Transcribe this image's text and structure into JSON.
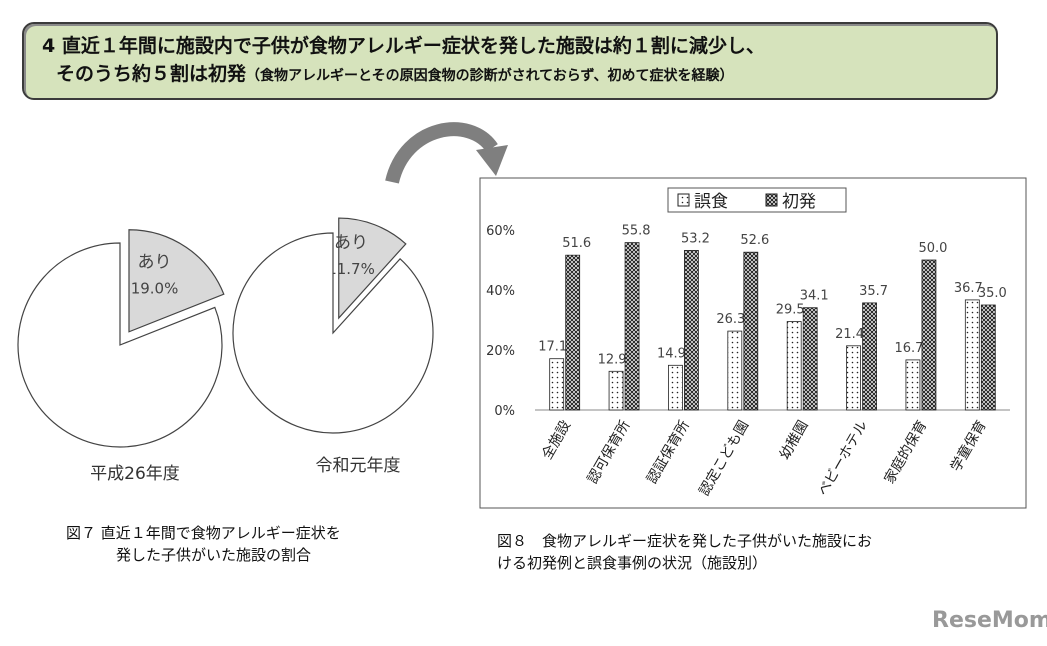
{
  "header": {
    "line1": "4 直近１年間に施設内で子供が食物アレルギー症状を発した施設は約１割に減少し、",
    "line2": "そのうち約５割は初発",
    "line2_note": "（食物アレルギーとその原因食物の診断がされておらず、初めて症状を経験）"
  },
  "captions": {
    "figure7": [
      "図７ 直近１年間で食物アレルギー症状を",
      "発した子供がいた施設の割合"
    ],
    "figure8": [
      "図８　食物アレルギー症状を発した子供がいた施設にお",
      "ける初発例と誤食事例の状況（施設別）"
    ]
  },
  "watermark": "ReseMom",
  "chart_data": [
    {
      "type": "pie",
      "title": "平成26年度",
      "categories": [
        "あり",
        null
      ],
      "values": [
        19.0,
        81.0
      ],
      "value_labels": [
        "19.0%",
        null
      ],
      "colors": [
        "#d9d9d9",
        "#ffffff"
      ]
    },
    {
      "type": "pie",
      "title": "令和元年度",
      "categories": [
        "あり",
        null
      ],
      "values": [
        11.7,
        88.3
      ],
      "value_labels": [
        "11.7%",
        null
      ],
      "colors": [
        "#d9d9d9",
        "#ffffff"
      ]
    },
    {
      "type": "bar",
      "categories": [
        "全施設",
        "認可保育所",
        "認証保育所",
        "認定こども園",
        "幼稚園",
        "ベビーホテル",
        "家庭的保育",
        "学童保育"
      ],
      "series": [
        {
          "name": "誤食",
          "color": "#ffffff",
          "pattern": "dots",
          "values": [
            17.1,
            12.9,
            14.9,
            26.3,
            29.5,
            21.4,
            16.7,
            36.7
          ],
          "value_labels": [
            "17.1",
            "12.9",
            "14.9",
            "26.3",
            "29.5",
            "21.4",
            "16.7",
            "36.7"
          ]
        },
        {
          "name": "初発",
          "color": "#404040",
          "pattern": "crosshatch",
          "values": [
            51.6,
            55.8,
            53.2,
            52.6,
            34.1,
            35.7,
            50.0,
            35.0
          ],
          "value_labels": [
            "51.6",
            "55.8",
            "53.2",
            "52.6",
            "34.1",
            "35.7",
            "50.0",
            "35.0"
          ]
        }
      ],
      "ylim": [
        0,
        60
      ],
      "yticks": [
        {
          "value": 0,
          "label": "0%"
        },
        {
          "value": 20,
          "label": "20%"
        },
        {
          "value": 40,
          "label": "40%"
        },
        {
          "value": 60,
          "label": "60%"
        }
      ],
      "grid": false,
      "legend": "top"
    }
  ]
}
